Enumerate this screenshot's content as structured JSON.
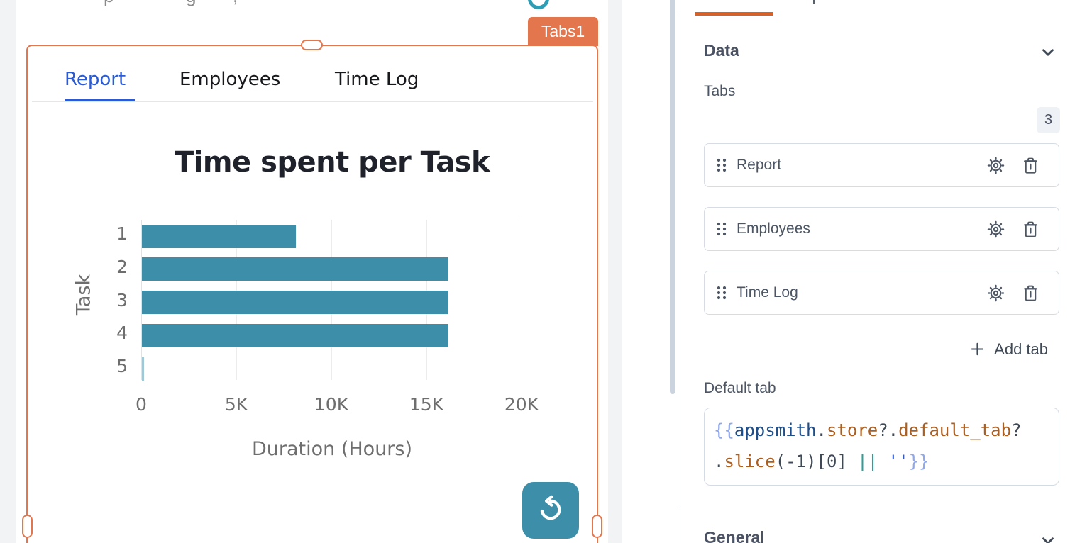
{
  "canvas": {
    "top_clipped_glyphs": [
      "p",
      "g",
      ","
    ],
    "widget_badge": "Tabs1",
    "widget_tabs": [
      {
        "label": "Report",
        "active": true
      },
      {
        "label": "Employees",
        "active": false
      },
      {
        "label": "Time Log",
        "active": false
      }
    ]
  },
  "chart_data": {
    "type": "bar",
    "orientation": "horizontal",
    "title": "Time spent per Task",
    "xlabel": "Duration (Hours)",
    "ylabel": "Task",
    "categories": [
      "1",
      "2",
      "3",
      "4",
      "5"
    ],
    "values": [
      8100,
      16100,
      16100,
      16100,
      60
    ],
    "xlim": [
      0,
      20000
    ],
    "xticks": [
      {
        "value": 0,
        "label": "0"
      },
      {
        "value": 5000,
        "label": "5K"
      },
      {
        "value": 10000,
        "label": "10K"
      },
      {
        "value": 15000,
        "label": "15K"
      },
      {
        "value": 20000,
        "label": "20K"
      }
    ],
    "grid": true,
    "legend": false,
    "bar_color": "#3d8fa9",
    "tiny_bar_color": "#9fc9d6"
  },
  "property_pane": {
    "data_section": {
      "title": "Data"
    },
    "tabs_field_label": "Tabs",
    "tabs_count": "3",
    "tab_items": [
      {
        "label": "Report"
      },
      {
        "label": "Employees"
      },
      {
        "label": "Time Log"
      }
    ],
    "add_tab_label": "Add tab",
    "default_tab_label": "Default tab",
    "default_tab_code": {
      "raw": "{{appsmith.store?.default_tab?.slice(-1)[0] || ''}}",
      "lines": [
        [
          {
            "c": "brace",
            "t": "{{"
          },
          {
            "c": "var",
            "t": "appsmith"
          },
          {
            "c": "punct",
            "t": "."
          },
          {
            "c": "prop",
            "t": "store"
          },
          {
            "c": "punct",
            "t": "?."
          },
          {
            "c": "prop",
            "t": "default_tab"
          },
          {
            "c": "punct",
            "t": "?"
          }
        ],
        [
          {
            "c": "punct",
            "t": "."
          },
          {
            "c": "prop",
            "t": "slice"
          },
          {
            "c": "punct",
            "t": "(-1)[0] "
          },
          {
            "c": "op",
            "t": "||"
          },
          {
            "c": "punct",
            "t": " "
          },
          {
            "c": "str",
            "t": "''"
          },
          {
            "c": "brace",
            "t": "}}"
          }
        ]
      ]
    },
    "general_section": {
      "title": "General"
    }
  },
  "colors": {
    "widget_selection_orange": "#e4764e",
    "pane_accent_orange": "#d4622a",
    "chart_teal": "#3d8fa9",
    "active_tab_blue": "#2a5bd7",
    "pane_text": "#4b5563"
  }
}
